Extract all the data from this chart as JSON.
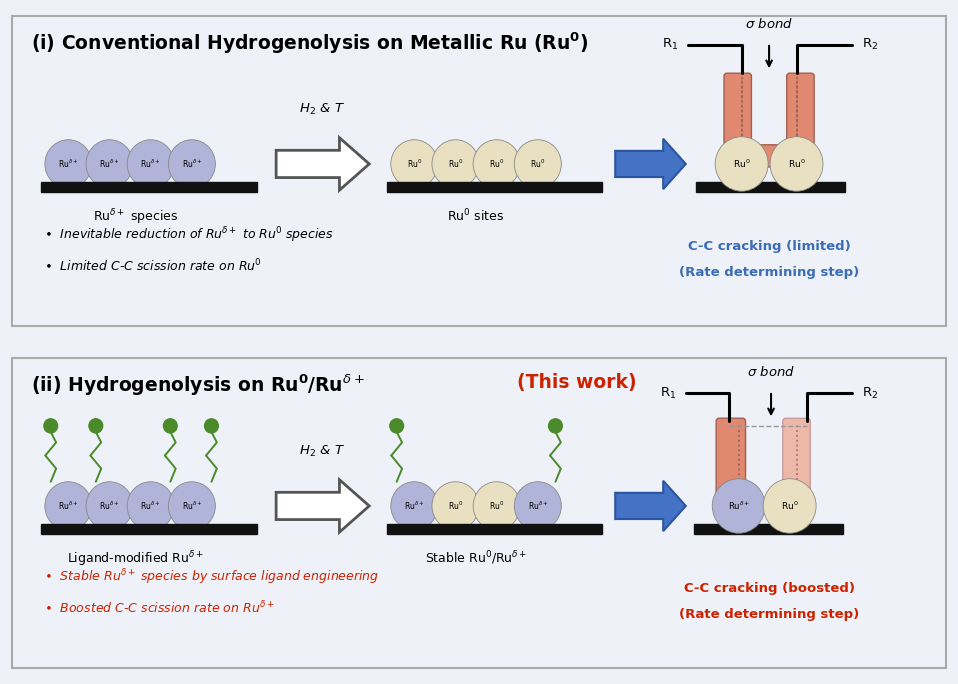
{
  "panel1_title_black": "(i) Conventional Hydrogenolysis on Metallic Ru (Ru",
  "panel1_title_super": "0",
  "panel1_title_end": ")",
  "panel2_title_black": "(ii) Hydrogenolysis on Ru",
  "panel2_title_red": " (This work)",
  "bg_color": "#eef2f8",
  "panel_bg": "#f8fafd",
  "blue_color": "#3a6db5",
  "red_color": "#cc2200",
  "ru0_color": "#e8e0c0",
  "rudelta_color": "#b0b4d8",
  "salmon_color": "#e08870",
  "light_salmon": "#edb8a8",
  "green_ligand": "#4a8a2a",
  "arrow_blue": "#4472c4",
  "arrow_fill": "#ffffff",
  "border_color": "#aaaaaa",
  "support_color": "#111111"
}
